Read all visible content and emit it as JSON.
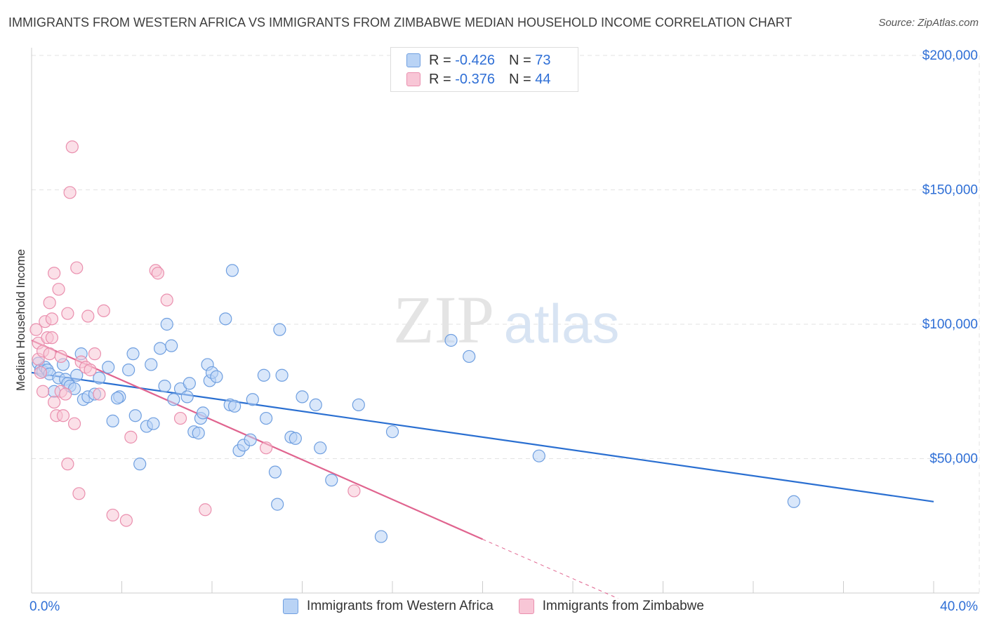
{
  "header": {
    "title": "IMMIGRANTS FROM WESTERN AFRICA VS IMMIGRANTS FROM ZIMBABWE MEDIAN HOUSEHOLD INCOME CORRELATION CHART",
    "source": "Source: ZipAtlas.com"
  },
  "legend": {
    "blue": {
      "r_label": "R =",
      "r_value": "-0.426",
      "n_label": "N =",
      "n_value": "73"
    },
    "pink": {
      "r_label": "R =",
      "r_value": "-0.376",
      "n_label": "N =",
      "n_value": "44"
    }
  },
  "colors": {
    "blue_fill": "#b9d3f5",
    "blue_stroke": "#6f9fe0",
    "blue_line": "#2a6fd1",
    "pink_fill": "#f8c6d6",
    "pink_stroke": "#ea8fae",
    "pink_line": "#e0648f",
    "axis_text": "#2f6fd6",
    "grid": "#e3e3e3"
  },
  "watermark": {
    "part1": "ZIP",
    "part2": "atlas"
  },
  "chart_data": {
    "type": "scatter",
    "title": "IMMIGRANTS FROM WESTERN AFRICA VS IMMIGRANTS FROM ZIMBABWE MEDIAN HOUSEHOLD INCOME CORRELATION CHART",
    "xlabel": "",
    "ylabel": "Median Household Income",
    "xlim": [
      0,
      40
    ],
    "ylim": [
      0,
      200000
    ],
    "x_ticks": [
      0,
      40
    ],
    "x_tick_labels": [
      "0.0%",
      "40.0%"
    ],
    "y_ticks": [
      50000,
      100000,
      150000,
      200000
    ],
    "y_tick_labels": [
      "$50,000",
      "$100,000",
      "$150,000",
      "$200,000"
    ],
    "grid": true,
    "legend_position": "top-center",
    "series": [
      {
        "name": "Immigrants from Western Africa",
        "color": "#6f9fe0",
        "r": -0.426,
        "n": 73,
        "trend": {
          "x": [
            0,
            40
          ],
          "y": [
            82000,
            34000
          ]
        },
        "points": [
          [
            0.3,
            85500
          ],
          [
            0.4,
            83000
          ],
          [
            0.5,
            82500
          ],
          [
            0.6,
            84000
          ],
          [
            0.7,
            83000
          ],
          [
            0.8,
            81500
          ],
          [
            1.0,
            75000
          ],
          [
            1.2,
            80000
          ],
          [
            1.4,
            85000
          ],
          [
            1.5,
            79500
          ],
          [
            1.6,
            78000
          ],
          [
            1.7,
            77000
          ],
          [
            2.2,
            89000
          ],
          [
            2.3,
            72000
          ],
          [
            2.5,
            73000
          ],
          [
            2.8,
            74000
          ],
          [
            3.0,
            80000
          ],
          [
            3.4,
            84000
          ],
          [
            3.6,
            64000
          ],
          [
            3.9,
            73000
          ],
          [
            3.8,
            72500
          ],
          [
            4.3,
            83000
          ],
          [
            4.5,
            89000
          ],
          [
            4.6,
            66000
          ],
          [
            4.8,
            48000
          ],
          [
            5.1,
            62000
          ],
          [
            5.3,
            85000
          ],
          [
            5.4,
            63000
          ],
          [
            5.7,
            91000
          ],
          [
            5.9,
            77000
          ],
          [
            6.0,
            100000
          ],
          [
            6.3,
            72000
          ],
          [
            6.2,
            92000
          ],
          [
            6.6,
            76000
          ],
          [
            6.9,
            73000
          ],
          [
            7.0,
            78000
          ],
          [
            7.2,
            60000
          ],
          [
            7.4,
            59500
          ],
          [
            7.5,
            65000
          ],
          [
            7.6,
            67000
          ],
          [
            7.8,
            85000
          ],
          [
            7.9,
            79000
          ],
          [
            8.0,
            82000
          ],
          [
            8.2,
            80500
          ],
          [
            8.6,
            102000
          ],
          [
            8.8,
            70000
          ],
          [
            8.9,
            120000
          ],
          [
            9.0,
            69500
          ],
          [
            9.2,
            53000
          ],
          [
            9.4,
            55000
          ],
          [
            9.7,
            57000
          ],
          [
            9.8,
            72000
          ],
          [
            10.4,
            65000
          ],
          [
            10.3,
            81000
          ],
          [
            10.8,
            45000
          ],
          [
            10.9,
            33000
          ],
          [
            11.0,
            98000
          ],
          [
            11.1,
            81000
          ],
          [
            11.5,
            58000
          ],
          [
            11.7,
            57500
          ],
          [
            12.0,
            73000
          ],
          [
            12.6,
            70000
          ],
          [
            12.8,
            54000
          ],
          [
            13.3,
            42000
          ],
          [
            14.5,
            70000
          ],
          [
            15.5,
            21000
          ],
          [
            16.0,
            60000
          ],
          [
            18.6,
            94000
          ],
          [
            19.4,
            88000
          ],
          [
            22.5,
            51000
          ],
          [
            33.8,
            34000
          ],
          [
            1.9,
            76000
          ],
          [
            2.0,
            81000
          ]
        ]
      },
      {
        "name": "Immigrants from Zimbabwe",
        "color": "#ea8fae",
        "r": -0.376,
        "n": 44,
        "trend": {
          "x": [
            0,
            20
          ],
          "y": [
            94000,
            20000
          ]
        },
        "trend_dashed": {
          "x": [
            20,
            26
          ],
          "y": [
            20000,
            -2000
          ]
        },
        "points": [
          [
            0.2,
            98000
          ],
          [
            0.3,
            93000
          ],
          [
            0.3,
            87000
          ],
          [
            0.4,
            82000
          ],
          [
            0.5,
            75000
          ],
          [
            0.5,
            90000
          ],
          [
            0.6,
            101000
          ],
          [
            0.7,
            95000
          ],
          [
            0.8,
            108000
          ],
          [
            0.8,
            89000
          ],
          [
            0.9,
            102000
          ],
          [
            0.9,
            95000
          ],
          [
            1.0,
            119000
          ],
          [
            1.0,
            71000
          ],
          [
            1.1,
            66000
          ],
          [
            1.2,
            113000
          ],
          [
            1.3,
            75000
          ],
          [
            1.3,
            88000
          ],
          [
            1.4,
            66000
          ],
          [
            1.5,
            74000
          ],
          [
            1.6,
            104000
          ],
          [
            1.6,
            48000
          ],
          [
            1.7,
            149000
          ],
          [
            1.8,
            166000
          ],
          [
            1.9,
            63000
          ],
          [
            2.0,
            121000
          ],
          [
            2.1,
            37000
          ],
          [
            2.2,
            86000
          ],
          [
            2.4,
            84000
          ],
          [
            2.5,
            103000
          ],
          [
            2.6,
            83000
          ],
          [
            2.8,
            89000
          ],
          [
            3.0,
            74000
          ],
          [
            3.2,
            105000
          ],
          [
            3.6,
            29000
          ],
          [
            4.2,
            27000
          ],
          [
            4.4,
            58000
          ],
          [
            5.5,
            120000
          ],
          [
            5.6,
            119000
          ],
          [
            6.0,
            109000
          ],
          [
            6.6,
            65000
          ],
          [
            7.7,
            31000
          ],
          [
            10.4,
            54000
          ],
          [
            14.3,
            38000
          ]
        ]
      }
    ]
  },
  "footer": {
    "x_min_label": "0.0%",
    "x_max_label": "40.0%",
    "legend_blue": "Immigrants from Western Africa",
    "legend_pink": "Immigrants from Zimbabwe"
  }
}
